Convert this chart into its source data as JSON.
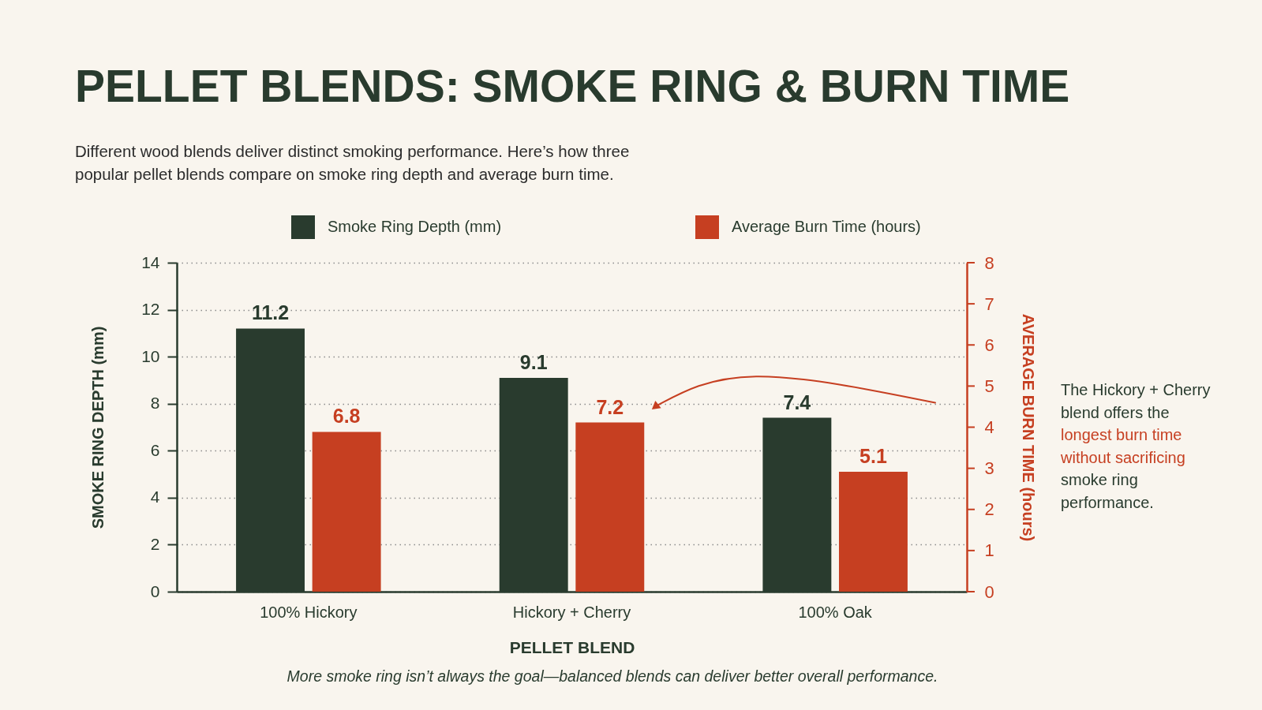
{
  "chart_data": {
    "type": "bar",
    "title": "PELLET BLENDS: SMOKE RING & BURN TIME",
    "subtitle": "Different wood blends deliver distinct smoking performance. Here’s how three popular pellet blends compare on smoke ring depth and average burn time.",
    "categories": [
      "100% Hickory",
      "Hickory + Cherry",
      "100% Oak"
    ],
    "series": [
      {
        "name": "Smoke Ring Depth (mm)",
        "color": "#293b2e",
        "values": [
          11.2,
          9.1,
          7.4
        ]
      },
      {
        "name": "Average Burn Time (hours)",
        "color": "#c63f21",
        "values": [
          6.8,
          7.2,
          5.1
        ]
      }
    ],
    "xlabel": "PELLET BLEND",
    "ylabel": "SMOKE RING DEPTH (mm)",
    "y2label": "AVERAGE BURN TIME (hours)",
    "ylim": [
      0,
      14
    ],
    "yticks": [
      0,
      2,
      4,
      6,
      8,
      10,
      12,
      14
    ],
    "y2lim": [
      0,
      8
    ],
    "y2ticks": [
      0,
      1,
      2,
      3,
      4,
      5,
      6,
      7,
      8
    ],
    "grid": "y",
    "legend": "top",
    "data_labels": true,
    "annotations": [
      "The Hickory + Cherry blend offers the",
      "longest burn time without sacrificing",
      "smoke ring performance.",
      "More smoke ring isn’t always the goal—balanced blends can deliver better overall performance."
    ]
  }
}
